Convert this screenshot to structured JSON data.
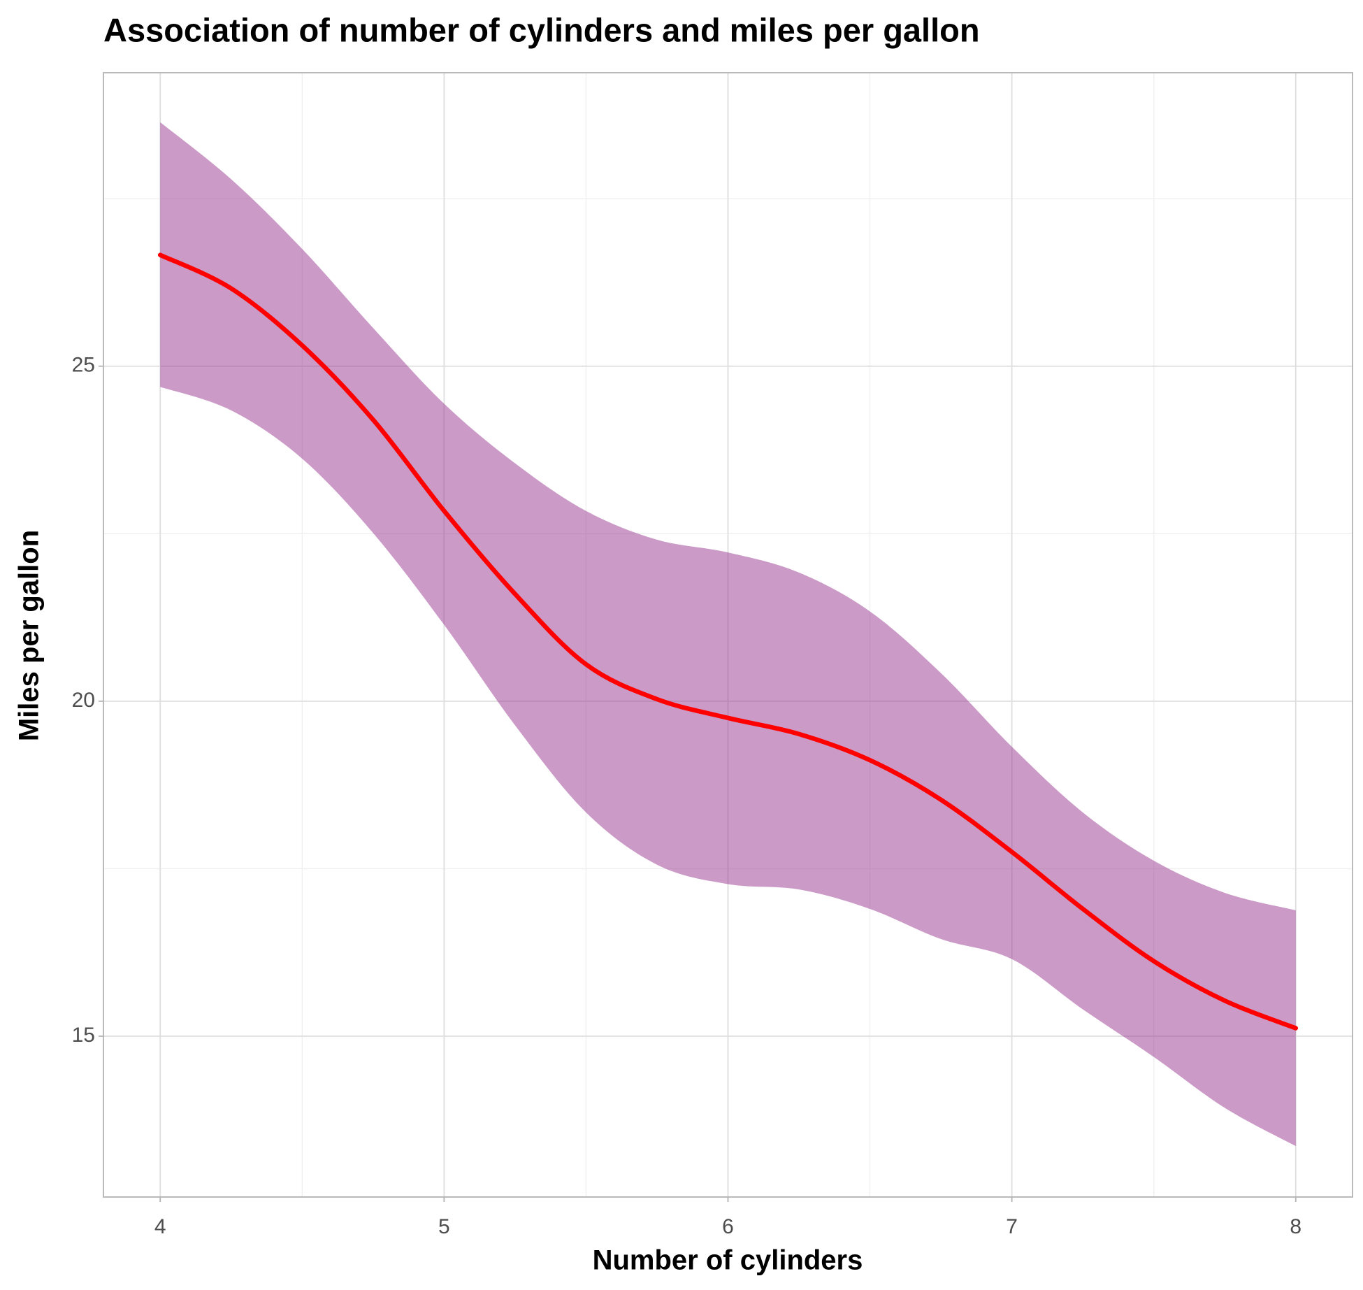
{
  "chart_data": {
    "type": "smooth",
    "title": "Association of number of cylinders and miles per gallon",
    "x_label": "Number of cylinders",
    "y_label": "Miles per gallon",
    "x": [
      4,
      4.25,
      4.5,
      4.75,
      5,
      5.25,
      5.5,
      5.75,
      6,
      6.25,
      6.5,
      6.75,
      7,
      7.25,
      7.5,
      7.75,
      8
    ],
    "line": {
      "color": "#ff0000",
      "values": [
        26.66,
        26.16,
        25.31,
        24.2,
        22.84,
        21.6,
        20.55,
        20.03,
        19.75,
        19.51,
        19.12,
        18.53,
        17.75,
        16.9,
        16.12,
        15.53,
        15.12
      ]
    },
    "band": {
      "color": "#9b3d94",
      "opacity": 0.52,
      "lower": [
        24.69,
        24.34,
        23.62,
        22.51,
        21.14,
        19.64,
        18.34,
        17.56,
        17.27,
        17.19,
        16.9,
        16.45,
        16.15,
        15.4,
        14.69,
        13.93,
        13.36
      ],
      "upper": [
        28.64,
        27.79,
        26.75,
        25.57,
        24.44,
        23.55,
        22.84,
        22.41,
        22.22,
        21.92,
        21.34,
        20.42,
        19.32,
        18.34,
        17.62,
        17.14,
        16.88
      ]
    },
    "xlim": [
      3.8,
      8.2
    ],
    "xticks": [
      4,
      5,
      6,
      7,
      8
    ],
    "x_minor_grid": [
      4.5,
      5.5,
      6.5,
      7.5
    ],
    "ylim": [
      12.6,
      29.38
    ],
    "yticks": [
      15,
      20,
      25
    ],
    "y_minor_grid": [
      17.5,
      22.5,
      27.5
    ],
    "grid": true
  }
}
